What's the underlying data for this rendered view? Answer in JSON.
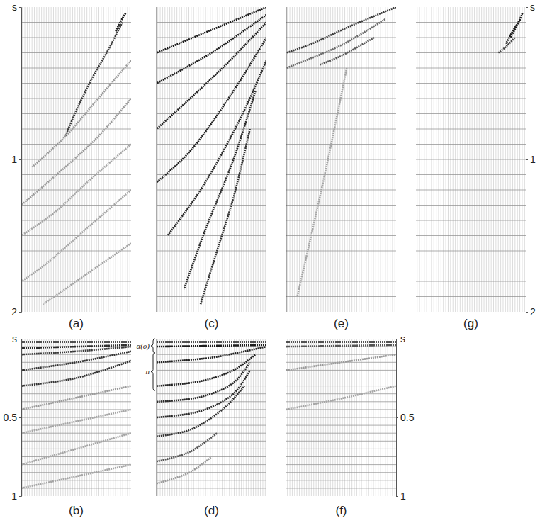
{
  "chart_data": [
    {
      "type": "wiggle",
      "title": "(a)",
      "xlim": [
        0,
        1
      ],
      "ylim": [
        0,
        2
      ],
      "yticks": [
        {
          "value": 0,
          "label": "s"
        },
        1,
        2
      ],
      "tick_labels": "y",
      "grid": true,
      "timing_lines": [
        0.1,
        0.2,
        0.3,
        0.4,
        0.5,
        0.6,
        0.7,
        0.8,
        0.9,
        1.0,
        1.1,
        1.2,
        1.3,
        1.4,
        1.5,
        1.6,
        1.7,
        1.8,
        1.9
      ],
      "trace_count": 46,
      "series": [
        {
          "x": [
            0.95,
            0.9,
            0.86
          ],
          "values": [
            0.04,
            0.1,
            0.16
          ],
          "color": "#1c1c1c"
        },
        {
          "x": [
            0.92,
            0.8,
            0.65,
            0.5,
            0.4
          ],
          "values": [
            0.1,
            0.27,
            0.46,
            0.68,
            0.85
          ],
          "color": "#3a3a3a"
        },
        {
          "x": [
            1,
            0.7,
            0.4,
            0.1
          ],
          "values": [
            0.35,
            0.6,
            0.85,
            1.05
          ],
          "color": "#9a9a9a"
        },
        {
          "x": [
            1,
            0.7,
            0.4,
            0
          ],
          "values": [
            0.6,
            0.85,
            1.05,
            1.3
          ],
          "color": "#9a9a9a"
        },
        {
          "x": [
            1,
            0.6,
            0.3,
            0
          ],
          "values": [
            0.9,
            1.15,
            1.35,
            1.5
          ],
          "color": "#a5a5a5"
        },
        {
          "x": [
            1,
            0.6,
            0.2,
            0
          ],
          "values": [
            1.2,
            1.45,
            1.7,
            1.8
          ],
          "color": "#a5a5a5"
        },
        {
          "x": [
            1,
            0.6,
            0.2
          ],
          "values": [
            1.55,
            1.75,
            1.95
          ],
          "color": "#a5a5a5"
        }
      ]
    },
    {
      "type": "wiggle",
      "title": "(b)",
      "xlim": [
        0,
        1
      ],
      "ylim": [
        0,
        1
      ],
      "yticks": [
        {
          "value": 0,
          "label": "s"
        },
        0.5,
        1
      ],
      "tick_labels": "y",
      "grid": true,
      "timing_lines": [
        0.05,
        0.1,
        0.15,
        0.2,
        0.25,
        0.3,
        0.35,
        0.4,
        0.45,
        0.5,
        0.55,
        0.6,
        0.65,
        0.7,
        0.75,
        0.8,
        0.85,
        0.9,
        0.95
      ],
      "trace_count": 46,
      "series": [
        {
          "x": [
            0,
            1
          ],
          "values": [
            0.02,
            0.02
          ],
          "color": "#1c1c1c"
        },
        {
          "x": [
            0,
            1
          ],
          "values": [
            0.06,
            0.04
          ],
          "color": "#2a2a2a"
        },
        {
          "x": [
            0,
            0.5,
            1
          ],
          "values": [
            0.1,
            0.08,
            0.05
          ],
          "color": "#3a3a3a"
        },
        {
          "x": [
            0,
            0.5,
            1
          ],
          "values": [
            0.2,
            0.15,
            0.08
          ],
          "color": "#333333"
        },
        {
          "x": [
            0,
            0.5,
            1
          ],
          "values": [
            0.3,
            0.25,
            0.14
          ],
          "color": "#333333"
        },
        {
          "x": [
            0,
            1
          ],
          "values": [
            0.45,
            0.3
          ],
          "color": "#9a9a9a"
        },
        {
          "x": [
            0,
            1
          ],
          "values": [
            0.6,
            0.45
          ],
          "color": "#a5a5a5"
        },
        {
          "x": [
            0,
            1
          ],
          "values": [
            0.8,
            0.6
          ],
          "color": "#a5a5a5"
        },
        {
          "x": [
            0,
            1
          ],
          "values": [
            0.95,
            0.8
          ],
          "color": "#a5a5a5"
        }
      ]
    },
    {
      "type": "wiggle",
      "title": "(c)",
      "xlim": [
        0,
        1
      ],
      "ylim": [
        0,
        2
      ],
      "tick_labels": false,
      "grid": true,
      "timing_lines": [
        0.1,
        0.2,
        0.3,
        0.4,
        0.5,
        0.6,
        0.7,
        0.8,
        0.9,
        1.0,
        1.1,
        1.2,
        1.3,
        1.4,
        1.5,
        1.6,
        1.7,
        1.8,
        1.9
      ],
      "trace_count": 46,
      "series": [
        {
          "x": [
            1,
            0.5,
            0
          ],
          "values": [
            0.0,
            0.15,
            0.3
          ],
          "color": "#1c1c1c"
        },
        {
          "x": [
            1,
            0.5,
            0
          ],
          "values": [
            0.05,
            0.3,
            0.5
          ],
          "color": "#1c1c1c"
        },
        {
          "x": [
            1,
            0.6,
            0
          ],
          "values": [
            0.1,
            0.4,
            0.8
          ],
          "color": "#222222"
        },
        {
          "x": [
            1,
            0.7,
            0.3,
            0
          ],
          "values": [
            0.2,
            0.55,
            0.95,
            1.15
          ],
          "color": "#222222"
        },
        {
          "x": [
            1,
            0.75,
            0.4,
            0.1
          ],
          "values": [
            0.35,
            0.75,
            1.2,
            1.5
          ],
          "color": "#2a2a2a"
        },
        {
          "x": [
            0.9,
            0.7,
            0.45,
            0.25
          ],
          "values": [
            0.55,
            1.0,
            1.45,
            1.85
          ],
          "color": "#2a2a2a"
        },
        {
          "x": [
            0.85,
            0.7,
            0.55,
            0.4
          ],
          "values": [
            0.8,
            1.25,
            1.6,
            1.95
          ],
          "color": "#333333"
        }
      ]
    },
    {
      "type": "wiggle",
      "title": "(d)",
      "xlim": [
        0,
        1
      ],
      "ylim": [
        0,
        1
      ],
      "tick_labels": false,
      "grid": true,
      "timing_lines": [
        0.05,
        0.1,
        0.15,
        0.2,
        0.25,
        0.3,
        0.35,
        0.4,
        0.45,
        0.5,
        0.55,
        0.6,
        0.65,
        0.7,
        0.75,
        0.8,
        0.85,
        0.9,
        0.95
      ],
      "trace_count": 46,
      "annotations": [
        {
          "text": "α(o)",
          "y": [
            0,
            0.09
          ]
        },
        {
          "text": "n",
          "y": [
            0.09,
            0.33
          ]
        }
      ],
      "series": [
        {
          "x": [
            0,
            1
          ],
          "values": [
            0.02,
            0.02
          ],
          "color": "#1c1c1c"
        },
        {
          "x": [
            0,
            1
          ],
          "values": [
            0.05,
            0.04
          ],
          "color": "#1c1c1c"
        },
        {
          "x": [
            0,
            0.5,
            0.8,
            1
          ],
          "values": [
            0.15,
            0.12,
            0.08,
            0.05
          ],
          "color": "#222222"
        },
        {
          "x": [
            0,
            0.4,
            0.7,
            0.9
          ],
          "values": [
            0.3,
            0.27,
            0.2,
            0.1
          ],
          "color": "#222222"
        },
        {
          "x": [
            0,
            0.4,
            0.7,
            0.85
          ],
          "values": [
            0.4,
            0.37,
            0.28,
            0.15
          ],
          "color": "#2a2a2a"
        },
        {
          "x": [
            0,
            0.4,
            0.7,
            0.85
          ],
          "values": [
            0.5,
            0.46,
            0.35,
            0.2
          ],
          "color": "#2a2a2a"
        },
        {
          "x": [
            0,
            0.3,
            0.6,
            0.8
          ],
          "values": [
            0.62,
            0.58,
            0.45,
            0.3
          ],
          "color": "#333333"
        },
        {
          "x": [
            0,
            0.3,
            0.55
          ],
          "values": [
            0.78,
            0.72,
            0.6
          ],
          "color": "#555555"
        },
        {
          "x": [
            0,
            0.3,
            0.5
          ],
          "values": [
            0.92,
            0.85,
            0.75
          ],
          "color": "#9a9a9a"
        }
      ]
    },
    {
      "type": "wiggle",
      "title": "(e)",
      "xlim": [
        0,
        1
      ],
      "ylim": [
        0,
        2
      ],
      "tick_labels": false,
      "grid": true,
      "timing_lines": [
        0.1,
        0.2,
        0.3,
        0.4,
        0.5,
        0.6,
        0.7,
        0.8,
        0.9,
        1.0,
        1.1,
        1.2,
        1.3,
        1.4,
        1.5,
        1.6,
        1.7,
        1.8,
        1.9
      ],
      "trace_count": 46,
      "series": [
        {
          "x": [
            1,
            0.6,
            0.2,
            0
          ],
          "values": [
            0.0,
            0.12,
            0.25,
            0.3
          ],
          "color": "#3a3a3a"
        },
        {
          "x": [
            0.9,
            0.5,
            0
          ],
          "values": [
            0.08,
            0.25,
            0.4
          ],
          "color": "#6a6a6a"
        },
        {
          "x": [
            0.8,
            0.5,
            0.3
          ],
          "values": [
            0.2,
            0.32,
            0.38
          ],
          "color": "#555555"
        },
        {
          "x": [
            0.55,
            0.35,
            0.1
          ],
          "values": [
            0.4,
            1.1,
            1.9
          ],
          "color": "#a5a5a5"
        }
      ]
    },
    {
      "type": "wiggle",
      "title": "(f)",
      "xlim": [
        0,
        1
      ],
      "ylim": [
        0,
        1
      ],
      "yticks": [
        {
          "value": 0,
          "label": "s"
        },
        0.5,
        1
      ],
      "tick_labels": "y",
      "grid": true,
      "timing_lines": [
        0.05,
        0.1,
        0.15,
        0.2,
        0.25,
        0.3,
        0.35,
        0.4,
        0.45,
        0.5,
        0.55,
        0.6,
        0.65,
        0.7,
        0.75,
        0.8,
        0.85,
        0.9,
        0.95
      ],
      "trace_count": 46,
      "series": [
        {
          "x": [
            0,
            1
          ],
          "values": [
            0.02,
            0.02
          ],
          "color": "#1c1c1c"
        },
        {
          "x": [
            0,
            1
          ],
          "values": [
            0.05,
            0.04
          ],
          "color": "#555555"
        },
        {
          "x": [
            0,
            0.5,
            1
          ],
          "values": [
            0.2,
            0.15,
            0.1
          ],
          "color": "#9a9a9a"
        },
        {
          "x": [
            0,
            0.5,
            1
          ],
          "values": [
            0.45,
            0.38,
            0.3
          ],
          "color": "#a5a5a5"
        }
      ]
    },
    {
      "type": "wiggle",
      "title": "(g)",
      "xlim": [
        0,
        1
      ],
      "ylim": [
        0,
        2
      ],
      "yticks": [
        {
          "value": 0,
          "label": "s"
        },
        1,
        2
      ],
      "tick_labels": "y",
      "grid": true,
      "timing_lines": [
        0.1,
        0.2,
        0.3,
        0.4,
        0.5,
        0.6,
        0.7,
        0.8,
        0.9,
        1.0,
        1.1,
        1.2,
        1.3,
        1.4,
        1.5,
        1.6,
        1.7,
        1.8,
        1.9
      ],
      "trace_count": 46,
      "series": [
        {
          "x": [
            0.97,
            0.92,
            0.86
          ],
          "values": [
            0.04,
            0.12,
            0.2
          ],
          "color": "#1c1c1c"
        },
        {
          "x": [
            0.95,
            0.88,
            0.82
          ],
          "values": [
            0.08,
            0.16,
            0.24
          ],
          "color": "#1c1c1c"
        },
        {
          "x": [
            0.9,
            0.82,
            0.75
          ],
          "values": [
            0.2,
            0.26,
            0.3
          ],
          "color": "#444444"
        }
      ]
    }
  ]
}
